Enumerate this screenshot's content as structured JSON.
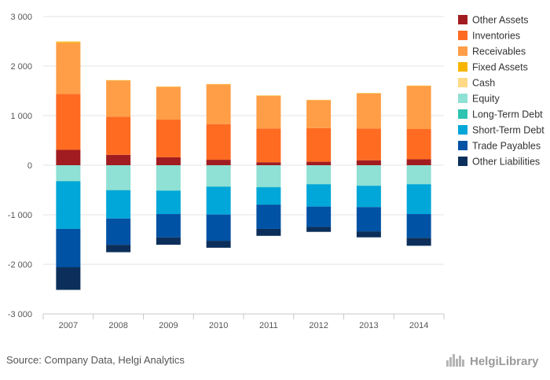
{
  "source_text": "Source: Company Data, Helgi Analytics",
  "logo": {
    "text": "HelgiLibrary",
    "icon": "helgi-city-skyline-icon"
  },
  "chart_data": {
    "type": "bar",
    "stacked": true,
    "title": "",
    "xlabel": "",
    "ylabel": "",
    "ylim": [
      -3000,
      3000
    ],
    "yticks": [
      -3000,
      -2000,
      -1000,
      0,
      1000,
      2000,
      3000
    ],
    "grid": true,
    "legend_position": "right",
    "categories": [
      "2007",
      "2008",
      "2009",
      "2010",
      "2011",
      "2012",
      "2013",
      "2014"
    ],
    "series": [
      {
        "name": "Other Assets",
        "color": "#a11c20",
        "values": [
          310,
          210,
          160,
          110,
          60,
          70,
          100,
          120
        ]
      },
      {
        "name": "Inventories",
        "color": "#ff6b21",
        "values": [
          1130,
          770,
          760,
          720,
          680,
          680,
          640,
          610
        ]
      },
      {
        "name": "Receivables",
        "color": "#ff9e47",
        "values": [
          1030,
          730,
          660,
          800,
          660,
          560,
          710,
          870
        ]
      },
      {
        "name": "Fixed Assets",
        "color": "#f7b500",
        "values": [
          20,
          5,
          5,
          5,
          5,
          5,
          5,
          5
        ]
      },
      {
        "name": "Cash",
        "color": "#ffd986",
        "values": [
          10,
          5,
          5,
          5,
          5,
          5,
          5,
          5
        ]
      },
      {
        "name": "Equity",
        "color": "#8fe0d5",
        "values": [
          -320,
          -500,
          -510,
          -430,
          -440,
          -380,
          -410,
          -380
        ]
      },
      {
        "name": "Long-Term Debt",
        "color": "#2cc4b0",
        "values": [
          -5,
          -5,
          -5,
          -5,
          -5,
          -5,
          -5,
          -5
        ]
      },
      {
        "name": "Short-Term Debt",
        "color": "#00a7d8",
        "values": [
          -960,
          -570,
          -470,
          -560,
          -350,
          -450,
          -430,
          -600
        ]
      },
      {
        "name": "Trade Payables",
        "color": "#0052a5",
        "values": [
          -770,
          -530,
          -470,
          -530,
          -490,
          -410,
          -490,
          -480
        ]
      },
      {
        "name": "Other Liabilities",
        "color": "#0b2f5a",
        "values": [
          -460,
          -150,
          -150,
          -140,
          -140,
          -100,
          -120,
          -160
        ]
      }
    ]
  }
}
